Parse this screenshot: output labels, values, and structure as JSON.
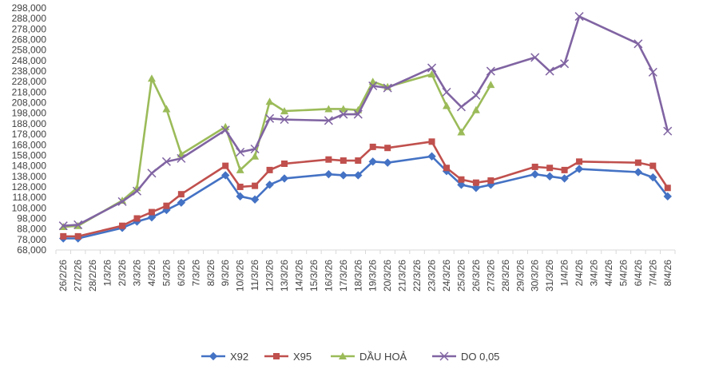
{
  "chart_data": {
    "type": "line",
    "title": "",
    "xlabel": "",
    "ylabel": "",
    "ylim": [
      68000,
      298000
    ],
    "ytick_step": 10000,
    "grid": false,
    "legend_position": "bottom",
    "categories": [
      "26/2/26",
      "27/2/26",
      "28/2/26",
      "1/3/26",
      "2/3/26",
      "3/3/26",
      "4/3/26",
      "5/3/26",
      "6/3/26",
      "7/3/26",
      "8/3/26",
      "9/3/26",
      "10/3/26",
      "11/3/26",
      "12/3/26",
      "13/3/26",
      "14/3/26",
      "15/3/26",
      "16/3/26",
      "17/3/26",
      "18/3/26",
      "19/3/26",
      "20/3/26",
      "21/3/26",
      "22/3/26",
      "23/3/26",
      "24/3/26",
      "25/3/26",
      "26/3/26",
      "27/3/26",
      "28/3/26",
      "29/3/26",
      "30/3/26",
      "31/3/26",
      "1/4/26",
      "2/4/26",
      "3/4/26",
      "4/4/26",
      "5/4/26",
      "6/4/26",
      "7/4/26",
      "8/4/26"
    ],
    "ytick_labels": [
      "68,000",
      "78,000",
      "88,000",
      "98,000",
      "108,000",
      "118,000",
      "128,000",
      "138,000",
      "148,000",
      "158,000",
      "168,000",
      "178,000",
      "188,000",
      "198,000",
      "208,000",
      "218,000",
      "228,000",
      "238,000",
      "248,000",
      "258,000",
      "268,000",
      "278,000",
      "288,000",
      "298,000"
    ],
    "series": [
      {
        "name": "X92",
        "color": "#4472C4",
        "marker": "diamond",
        "values": [
          79000,
          79000,
          null,
          null,
          89000,
          95000,
          99000,
          106000,
          113000,
          null,
          null,
          139000,
          119000,
          116000,
          130000,
          136000,
          null,
          null,
          140000,
          139000,
          139000,
          152000,
          151000,
          null,
          null,
          157000,
          143000,
          130000,
          127000,
          130000,
          null,
          null,
          140000,
          138000,
          136000,
          145000,
          null,
          null,
          null,
          142000,
          137000,
          119000
        ]
      },
      {
        "name": "X95",
        "color": "#C0504D",
        "marker": "square",
        "values": [
          81000,
          81000,
          null,
          null,
          91000,
          98000,
          104000,
          110000,
          121000,
          null,
          null,
          148000,
          128000,
          129000,
          144000,
          150000,
          null,
          null,
          154000,
          153000,
          153000,
          166000,
          165000,
          null,
          null,
          171000,
          146000,
          135000,
          132000,
          134000,
          null,
          null,
          147000,
          146000,
          144000,
          152000,
          null,
          null,
          null,
          151000,
          148000,
          127000
        ]
      },
      {
        "name": "DẦU HOẢ",
        "color": "#9BBB59",
        "marker": "triangle",
        "values": [
          90000,
          91000,
          null,
          null,
          115000,
          127000,
          231000,
          202000,
          159000,
          null,
          null,
          185000,
          144000,
          157000,
          209000,
          200000,
          null,
          null,
          202000,
          202000,
          201000,
          228000,
          223000,
          null,
          null,
          235000,
          205000,
          180000,
          201000,
          225000,
          null,
          null,
          null,
          null,
          null,
          null,
          null,
          null,
          null,
          null,
          null,
          null
        ]
      },
      {
        "name": "DO 0,05",
        "color": "#8064A2",
        "marker": "x",
        "values": [
          91000,
          92000,
          null,
          null,
          114000,
          124000,
          141000,
          152000,
          155000,
          null,
          null,
          182000,
          161000,
          164000,
          193000,
          192000,
          null,
          null,
          191000,
          197000,
          197000,
          224000,
          222000,
          null,
          null,
          241000,
          218000,
          204000,
          215000,
          238000,
          null,
          null,
          251000,
          238000,
          245000,
          290000,
          null,
          null,
          null,
          264000,
          237000,
          181000
        ]
      }
    ]
  }
}
